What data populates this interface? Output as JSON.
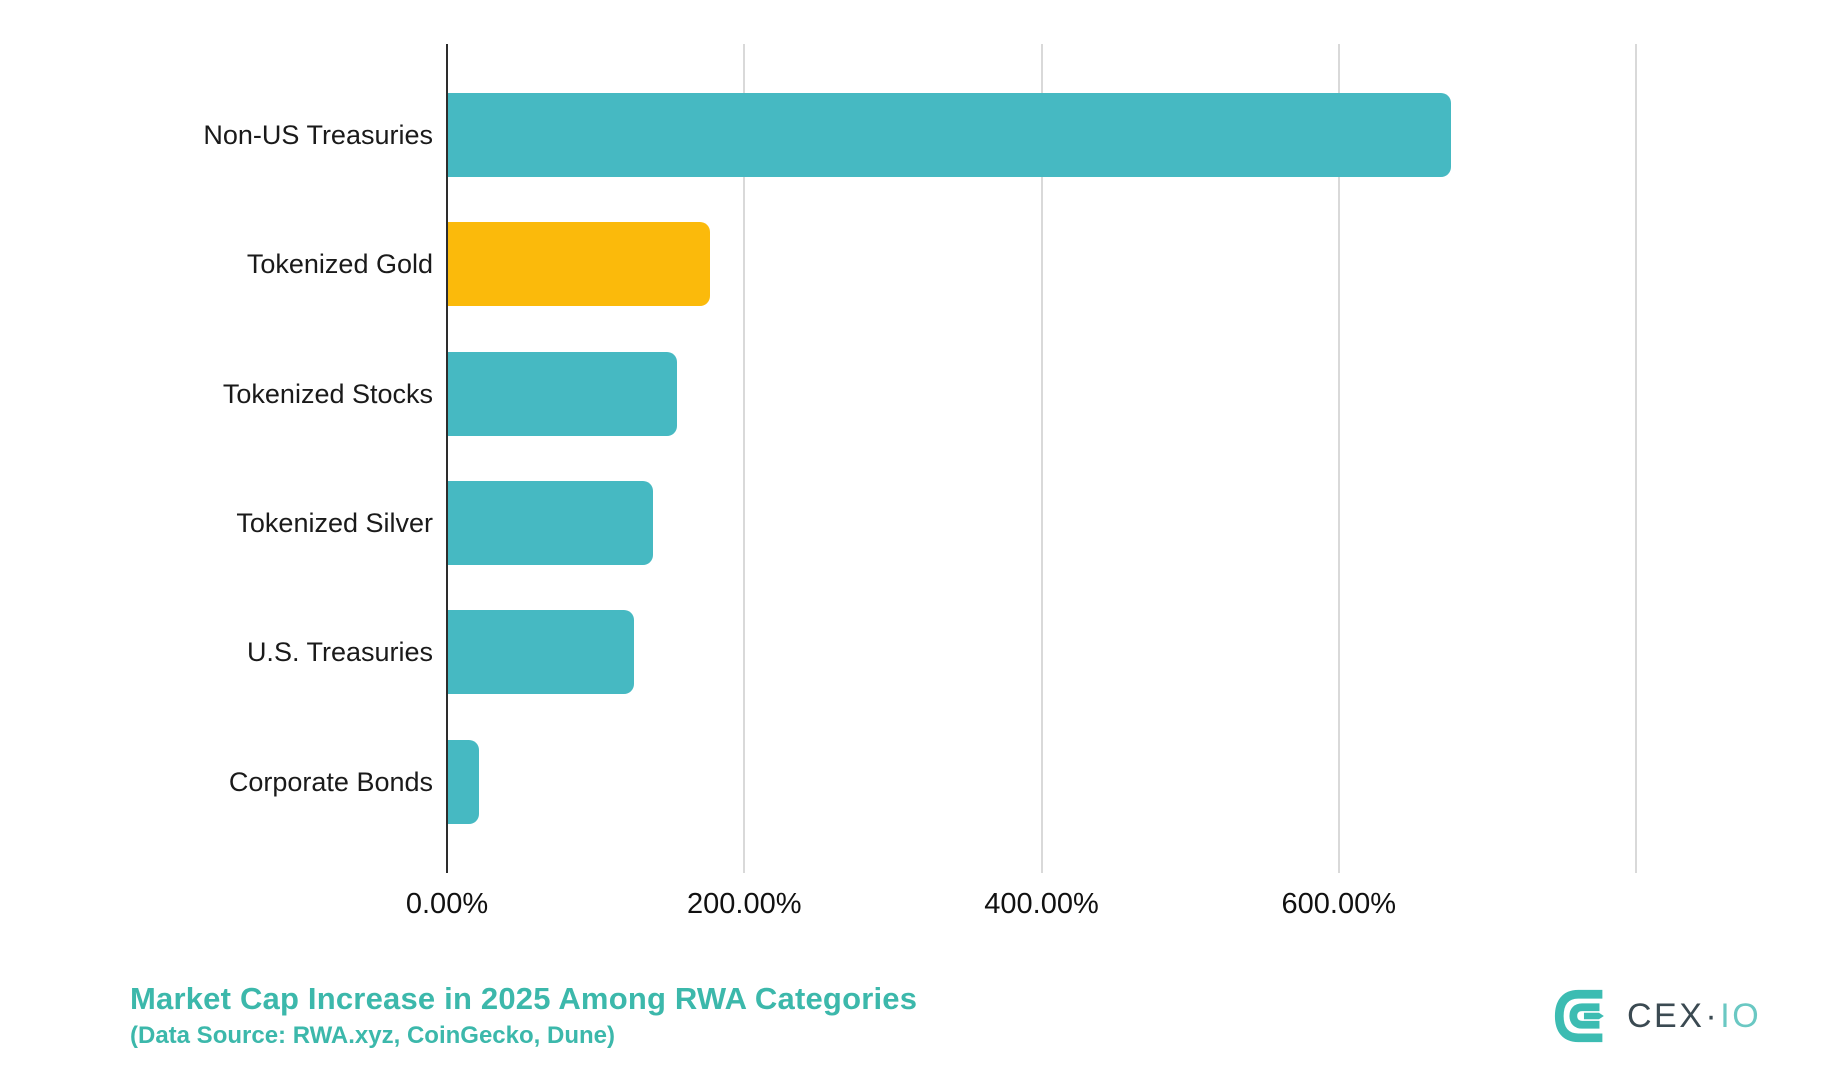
{
  "chart_data": {
    "type": "bar",
    "orientation": "horizontal",
    "title": "Market Cap Increase in 2025 Among RWA Categories",
    "subtitle": "(Data Source: RWA.xyz, CoinGecko, Dune)",
    "categories": [
      "Non-US Treasuries",
      "Tokenized Gold",
      "Tokenized Stocks",
      "Tokenized Silver",
      "U.S. Treasuries",
      "Corporate Bonds"
    ],
    "values": [
      675,
      176,
      154,
      138,
      125,
      21
    ],
    "unit": "%",
    "xlim": [
      0,
      800
    ],
    "x_ticks": [
      {
        "value": 0,
        "label": "0.00%"
      },
      {
        "value": 200,
        "label": "200.00%"
      },
      {
        "value": 400,
        "label": "400.00%"
      },
      {
        "value": 600,
        "label": "600.00%"
      }
    ],
    "gridline_values": [
      200,
      400,
      600,
      800
    ],
    "grid": true,
    "legend": false,
    "bar_colors": [
      "#46b9c2",
      "#fbba0b",
      "#46b9c2",
      "#46b9c2",
      "#46b9c2",
      "#46b9c2"
    ]
  },
  "colors": {
    "teal_bar": "#46b9c2",
    "gold_bar": "#fbba0b",
    "title_teal": "#3cb8ab",
    "gridline": "#d9d9d9",
    "axis_line": "#2d2d2d",
    "category_text": "#1a1a1a",
    "logo_mark_teal": "#3cbcb2",
    "logo_cex_dark": "#3b4a52",
    "logo_io_teal": "#6ac8c3"
  },
  "logo": {
    "icon": "cexio-monogram-icon",
    "text_main": "CEX",
    "separator": "·",
    "text_secondary": "IO"
  }
}
